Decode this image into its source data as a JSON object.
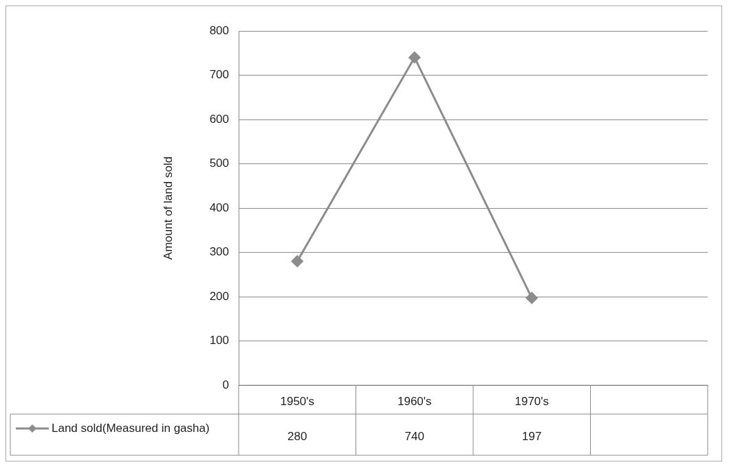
{
  "chart_data": {
    "type": "line",
    "ylabel": "Amount of land sold",
    "categories": [
      "1950's",
      "1960's",
      "1970's",
      null
    ],
    "series": [
      {
        "name": "Land sold(Measured in gasha)",
        "color": "#8c8c8c",
        "values": [
          280,
          740,
          197,
          null
        ]
      }
    ],
    "ylim": [
      0,
      800
    ],
    "yticks": [
      0,
      100,
      200,
      300,
      400,
      500,
      600,
      700,
      800
    ],
    "grid": "y",
    "marker": "diamond",
    "line_style": "solid",
    "data_labels": true,
    "legend": "bottom"
  }
}
